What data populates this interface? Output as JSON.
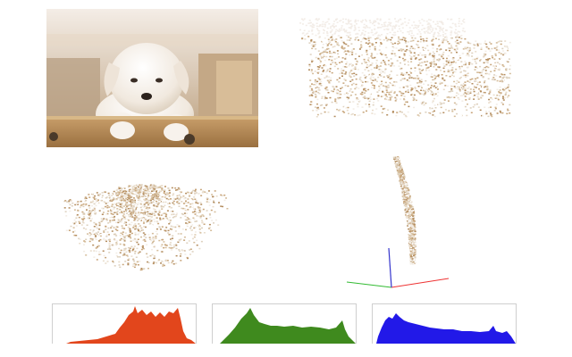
{
  "photo": {
    "icon": "puppy-photo"
  },
  "point_clouds": {
    "front": {
      "icon": "point-cloud-front-view"
    },
    "oblique": {
      "icon": "point-cloud-oblique-view"
    },
    "side": {
      "icon": "point-cloud-side-view",
      "axes": {
        "x": "#e33",
        "y": "#3b3",
        "z": "#33c"
      }
    }
  },
  "histograms": [
    {
      "channel": "red",
      "color": "#e2461c"
    },
    {
      "channel": "green",
      "color": "#3f8a1e"
    },
    {
      "channel": "blue",
      "color": "#2219e8"
    }
  ]
}
